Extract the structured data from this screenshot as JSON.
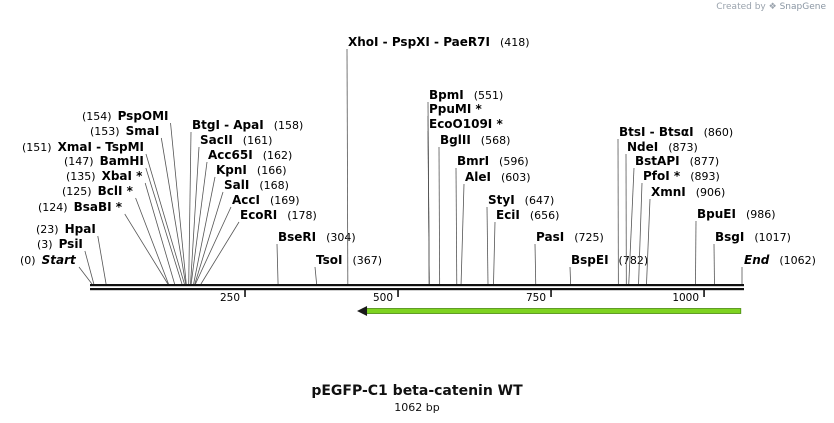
{
  "credit": {
    "created_by": "Created by",
    "brand": "SnapGene"
  },
  "plasmid": {
    "name": "pEGFP-C1 beta-catenin WT",
    "length_label": "1062 bp"
  },
  "ruler": {
    "length": 1062,
    "ticks": [
      250,
      500,
      750,
      1000
    ]
  },
  "enzymes": [
    {
      "name": "Start",
      "pos": 0,
      "label": "(0)"
    },
    {
      "name": "PsiI",
      "pos": 3,
      "label": "(3)"
    },
    {
      "name": "HpaI",
      "pos": 23,
      "label": "(23)"
    },
    {
      "name": "BsaBI *",
      "pos": 124,
      "label": "(124)"
    },
    {
      "name": "BclI *",
      "pos": 125,
      "label": "(125)"
    },
    {
      "name": "XbaI *",
      "pos": 135,
      "label": "(135)"
    },
    {
      "name": "BamHI",
      "pos": 147,
      "label": "(147)"
    },
    {
      "name": "XmaI - TspMI",
      "pos": 151,
      "label": "(151)"
    },
    {
      "name": "SmaI",
      "pos": 153,
      "label": "(153)"
    },
    {
      "name": "PspOMI",
      "pos": 154,
      "label": "(154)"
    },
    {
      "name": "BtgI - ApaI",
      "pos": 158,
      "label": "(158)"
    },
    {
      "name": "SacII",
      "pos": 161,
      "label": "(161)"
    },
    {
      "name": "Acc65I",
      "pos": 162,
      "label": "(162)"
    },
    {
      "name": "KpnI",
      "pos": 166,
      "label": "(166)"
    },
    {
      "name": "SalI",
      "pos": 168,
      "label": "(168)"
    },
    {
      "name": "AccI",
      "pos": 169,
      "label": "(169)"
    },
    {
      "name": "EcoRI",
      "pos": 178,
      "label": "(178)"
    },
    {
      "name": "BseRI",
      "pos": 304,
      "label": "(304)"
    },
    {
      "name": "TsoI",
      "pos": 367,
      "label": "(367)"
    },
    {
      "name": "XhoI - PspXI - PaeR7I",
      "pos": 418,
      "label": "(418)"
    },
    {
      "name": "BpmI",
      "pos": 551,
      "label": "(551)"
    },
    {
      "name": "PpuMI *",
      "pos": 551,
      "label": ""
    },
    {
      "name": "EcoO109I *",
      "pos": 551,
      "label": ""
    },
    {
      "name": "BglII",
      "pos": 568,
      "label": "(568)"
    },
    {
      "name": "BmrI",
      "pos": 596,
      "label": "(596)"
    },
    {
      "name": "AleI",
      "pos": 603,
      "label": "(603)"
    },
    {
      "name": "StyI",
      "pos": 647,
      "label": "(647)"
    },
    {
      "name": "EciI",
      "pos": 656,
      "label": "(656)"
    },
    {
      "name": "PasI",
      "pos": 725,
      "label": "(725)"
    },
    {
      "name": "BspEI",
      "pos": 782,
      "label": "(782)"
    },
    {
      "name": "BtsI - BtsαI",
      "pos": 860,
      "label": "(860)"
    },
    {
      "name": "NdeI",
      "pos": 873,
      "label": "(873)"
    },
    {
      "name": "BstAPI",
      "pos": 877,
      "label": "(877)"
    },
    {
      "name": "PfoI *",
      "pos": 893,
      "label": "(893)"
    },
    {
      "name": "XmnI",
      "pos": 906,
      "label": "(906)"
    },
    {
      "name": "BpuEI",
      "pos": 986,
      "label": "(986)"
    },
    {
      "name": "BsgI",
      "pos": 1017,
      "label": "(1017)"
    },
    {
      "name": "End",
      "pos": 1062,
      "label": "(1062)"
    }
  ],
  "features": [
    {
      "type": "arrow",
      "start": 433,
      "end": 1060,
      "direction": "reverse",
      "color": "#7ed321"
    }
  ]
}
